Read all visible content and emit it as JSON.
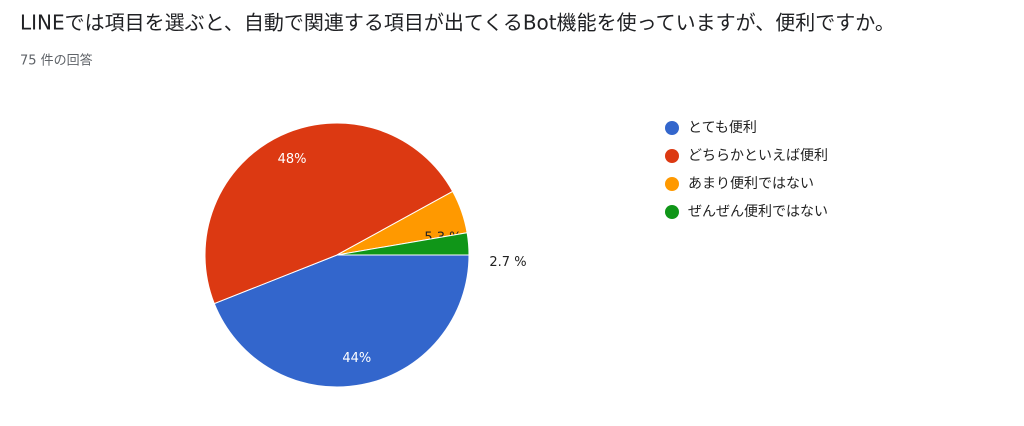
{
  "chart_data": {
    "type": "pie",
    "title": "LINEでは項目を選ぶと、自動で関連する項目が出てくるBot機能を使っていますが、便利ですか。",
    "subtitle": "75 件の回答",
    "categories": [
      "とても便利",
      "どちらかといえば便利",
      "あまり便利ではない",
      "ぜんぜん便利ではない"
    ],
    "values": [
      44,
      48,
      5.3,
      2.7
    ],
    "value_labels": [
      "44%",
      "48%",
      "5.3 %",
      "2.7 %"
    ],
    "colors": [
      "#3366cc",
      "#dc3912",
      "#ff9900",
      "#109618"
    ],
    "legend": "right"
  }
}
